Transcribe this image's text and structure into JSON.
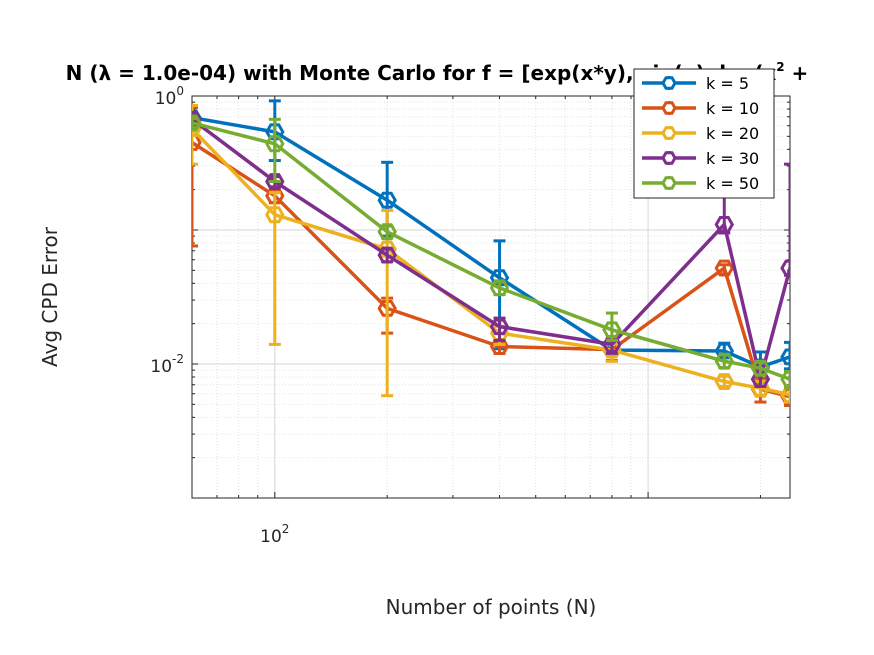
{
  "chart_data": {
    "type": "line",
    "title": "N (λ = 1.0e-04) with Monte Carlo for f = [exp(x*y), sin(x), log(x",
    "title_sup": "2",
    "title_tail": " +",
    "xlabel": "Number of points (N)",
    "ylabel": "Avg CPD Error",
    "x_scale": "log",
    "y_scale": "log",
    "xlim": [
      60,
      2400
    ],
    "ylim": [
      0.001,
      1
    ],
    "x_ticks": [
      {
        "value": 100,
        "base": "10",
        "exp": "2"
      }
    ],
    "y_ticks": [
      {
        "value": 0.01,
        "base": "10",
        "exp": "-2"
      },
      {
        "value": 1,
        "base": "10",
        "exp": "0"
      }
    ],
    "grid": true,
    "legend_position": "top-right",
    "x": [
      60,
      100,
      200,
      400,
      800,
      1600,
      2000,
      2400
    ],
    "series": [
      {
        "name": "k = 5",
        "color": "#0072BD",
        "values": [
          0.69,
          0.54,
          0.167,
          0.044,
          0.0127,
          0.0125,
          0.0095,
          0.0113
        ],
        "lower": [
          0.62,
          0.33,
          0.09,
          0.013,
          0.0106,
          0.0113,
          0.0078,
          0.0092
        ],
        "upper": [
          0.75,
          0.92,
          0.32,
          0.083,
          0.0148,
          0.0143,
          0.0123,
          0.0145
        ]
      },
      {
        "name": "k = 10",
        "color": "#D95319",
        "values": [
          0.45,
          0.18,
          0.026,
          0.0135,
          0.0128,
          0.052,
          0.0065,
          0.0057
        ],
        "lower": [
          0.076,
          0.16,
          0.017,
          0.012,
          0.0105,
          0.047,
          0.0052,
          0.0049
        ],
        "upper": [
          0.82,
          0.2,
          0.031,
          0.0145,
          0.0145,
          0.055,
          0.0078,
          0.0066
        ]
      },
      {
        "name": "k = 20",
        "color": "#EDB120",
        "values": [
          0.57,
          0.13,
          0.072,
          0.017,
          0.0127,
          0.0074,
          0.0066,
          0.0059
        ],
        "lower": [
          0.31,
          0.014,
          0.0058,
          0.014,
          0.0105,
          0.0068,
          0.0058,
          0.0052
        ],
        "upper": [
          0.85,
          0.19,
          0.14,
          0.021,
          0.0148,
          0.0081,
          0.0074,
          0.0067
        ]
      },
      {
        "name": "k = 30",
        "color": "#7E2F8E",
        "values": [
          0.67,
          0.23,
          0.065,
          0.019,
          0.014,
          0.11,
          0.0077,
          0.052
        ],
        "lower": [
          0.61,
          0.21,
          0.058,
          0.015,
          0.012,
          0.095,
          0.0068,
          0.046
        ],
        "upper": [
          0.72,
          0.25,
          0.072,
          0.022,
          0.016,
          0.26,
          0.0086,
          0.31
        ]
      },
      {
        "name": "k = 50",
        "color": "#77AC30",
        "values": [
          0.63,
          0.44,
          0.097,
          0.037,
          0.018,
          0.0105,
          0.0093,
          0.0077
        ],
        "lower": [
          0.58,
          0.23,
          0.087,
          0.033,
          0.015,
          0.0094,
          0.0083,
          0.0066
        ],
        "upper": [
          0.68,
          0.67,
          0.107,
          0.041,
          0.024,
          0.0117,
          0.0103,
          0.0088
        ]
      }
    ]
  }
}
